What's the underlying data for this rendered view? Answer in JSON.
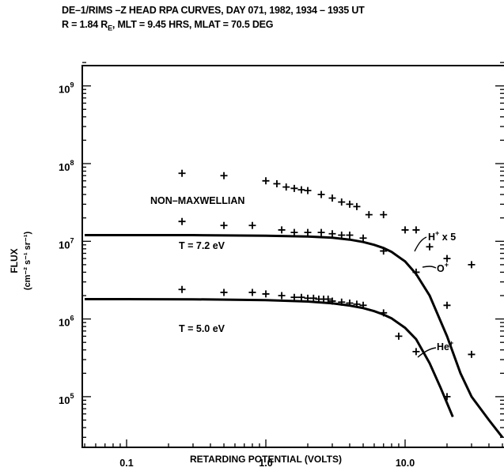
{
  "chart_data": {
    "type": "scatter",
    "title": "DE–1/RIMS –Z HEAD RPA CURVES, DAY 071, 1982, 1934 – 1935 UT",
    "subtitle": "R = 1.84 R_E, MLT = 9.45 HRS, MLAT = 70.5 DEG",
    "subtitle_parts": {
      "a": "R = 1.84 R",
      "sub": "E",
      "b": ", MLT = 9.45 HRS, MLAT = 70.5 DEG"
    },
    "xlabel": "RETARDING POTENTIAL (VOLTS)",
    "ylabel": "FLUX",
    "ylabel_units": "(cm⁻² s⁻¹ sr⁻¹)",
    "x_scale": "log",
    "y_scale": "log",
    "xlim": [
      0.05,
      50
    ],
    "ylim": [
      30000,
      2000000000
    ],
    "x_ticks": [
      {
        "value": 0.1,
        "label": "0.1"
      },
      {
        "value": 1.0,
        "label": "1.0"
      },
      {
        "value": 10.0,
        "label": "10.0"
      }
    ],
    "y_ticks": [
      {
        "value": 100000,
        "base": "10",
        "exp": "5"
      },
      {
        "value": 1000000,
        "base": "10",
        "exp": "6"
      },
      {
        "value": 10000000,
        "base": "10",
        "exp": "7"
      },
      {
        "value": 100000000,
        "base": "10",
        "exp": "8"
      },
      {
        "value": 1000000000,
        "base": "10",
        "exp": "9"
      }
    ],
    "series": [
      {
        "name": "H⁺ x 5",
        "marker": "plus",
        "x": [
          0.25,
          0.5,
          1.0,
          1.2,
          1.4,
          1.6,
          1.8,
          2.0,
          2.5,
          3.0,
          3.5,
          4.0,
          4.5,
          5.5,
          7.0,
          10.0,
          12.0,
          15.0,
          20.0,
          30.0
        ],
        "y": [
          75000000,
          70000000,
          60000000,
          55000000,
          50000000,
          48000000,
          46000000,
          45000000,
          40000000,
          36000000,
          32000000,
          30000000,
          28000000,
          22000000,
          22000000,
          14000000,
          14000000,
          8500000,
          6000000,
          5000000
        ]
      },
      {
        "name": "O⁺",
        "marker": "plus",
        "x": [
          0.25,
          0.5,
          0.8,
          1.3,
          1.6,
          2.0,
          2.5,
          3.0,
          3.5,
          4.0,
          5.0,
          7.0,
          12.0,
          20.0
        ],
        "y": [
          18000000,
          16000000,
          16000000,
          14000000,
          13000000,
          13000000,
          13000000,
          12500000,
          12000000,
          12000000,
          11000000,
          7500000,
          4000000,
          1500000
        ]
      },
      {
        "name": "He⁺",
        "marker": "plus",
        "x": [
          0.25,
          0.5,
          0.8,
          1.0,
          1.3,
          1.6,
          1.8,
          2.0,
          2.2,
          2.4,
          2.6,
          2.8,
          3.0,
          3.5,
          4.0,
          4.5,
          5.0,
          7.0,
          9.0,
          12.0,
          20.0,
          30.0
        ],
        "y": [
          2400000,
          2200000,
          2200000,
          2100000,
          2000000,
          1900000,
          1900000,
          1850000,
          1850000,
          1800000,
          1800000,
          1800000,
          1700000,
          1650000,
          1600000,
          1550000,
          1500000,
          1200000,
          600000,
          380000,
          100000,
          350000
        ]
      }
    ],
    "fits": [
      {
        "label": "T = 7.2 eV",
        "x": [
          0.05,
          0.1,
          0.3,
          1.0,
          2.0,
          3.0,
          4.0,
          5.0,
          6.0,
          7.0,
          8.0,
          10.0,
          12.0,
          15.0,
          20.0,
          25.0,
          30.0,
          40.0,
          50.0
        ],
        "y": [
          12000000,
          12000000,
          12000000,
          11800000,
          11500000,
          11100000,
          10500000,
          9800000,
          9000000,
          8200000,
          7300000,
          5500000,
          3800000,
          2000000,
          600000,
          200000,
          100000,
          50000,
          30000
        ]
      },
      {
        "label": "T = 5.0 eV",
        "x": [
          0.05,
          0.1,
          0.3,
          1.0,
          2.0,
          3.0,
          4.0,
          5.0,
          6.0,
          7.0,
          8.0,
          10.0,
          12.0,
          15.0,
          18.0,
          22.0
        ],
        "y": [
          1800000,
          1800000,
          1790000,
          1750000,
          1680000,
          1590000,
          1490000,
          1380000,
          1260000,
          1140000,
          1020000,
          770000,
          550000,
          270000,
          130000,
          55000
        ]
      }
    ],
    "annotations": {
      "non_maxwellian": "NON–MAXWELLIAN",
      "t72": "T = 7.2 eV",
      "t50": "T = 5.0 eV",
      "h_plus": {
        "ion": "H",
        "sup": "+",
        "tail": " x 5"
      },
      "o_plus": {
        "ion": "O",
        "sup": "+"
      },
      "he_plus": {
        "ion": "He",
        "sup": "+"
      }
    }
  }
}
